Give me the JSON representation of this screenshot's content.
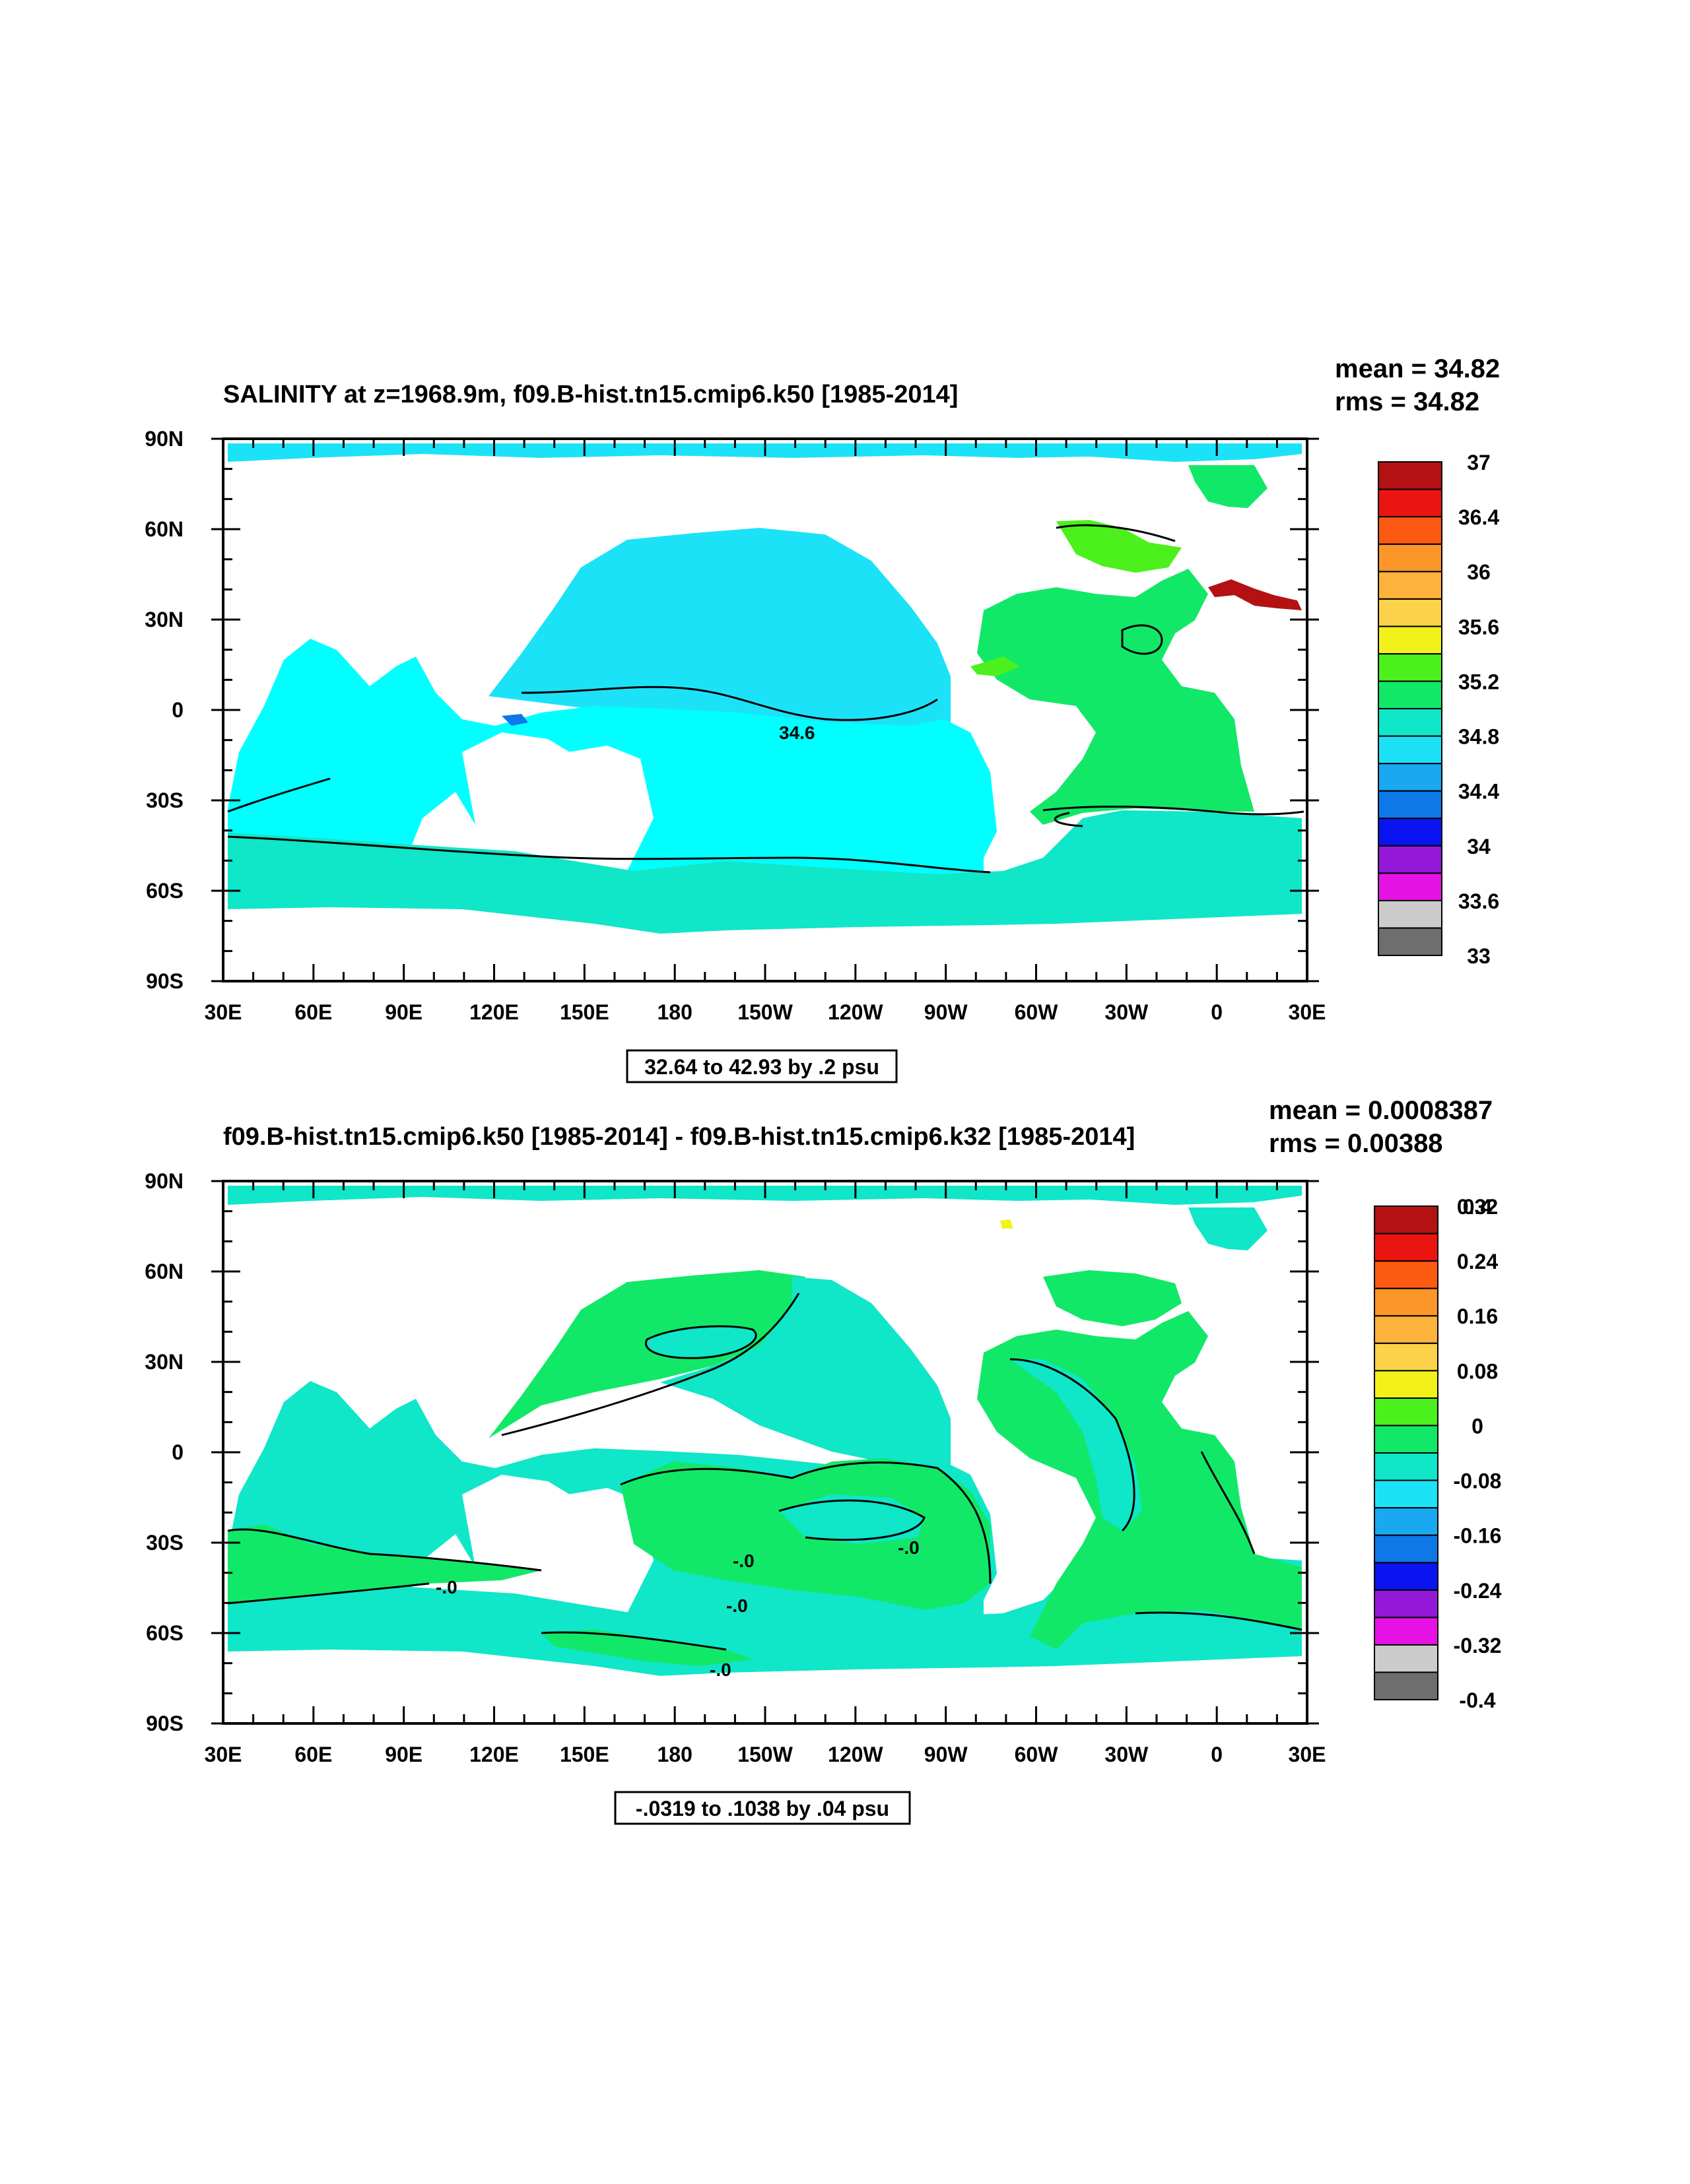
{
  "chart_data": [
    {
      "type": "heatmap",
      "title": "SALINITY at z=1968.9m, f09.B-hist.tn15.cmip6.k50 [1985-2014]",
      "stats": {
        "mean": "mean = 34.82",
        "rms": "rms = 34.82"
      },
      "range_label": "32.64 to 42.93 by .2 psu",
      "x_ticks": [
        "30E",
        "60E",
        "90E",
        "120E",
        "150E",
        "180",
        "150W",
        "120W",
        "90W",
        "60W",
        "30W",
        "0",
        "30E"
      ],
      "y_ticks": [
        "90N",
        "60N",
        "30N",
        "0",
        "30S",
        "60S",
        "90S"
      ],
      "xlim": [
        30,
        390
      ],
      "ylim": [
        -90,
        90
      ],
      "colorbar": {
        "colors": [
          "#6e6e6e",
          "#cccccc",
          "#e612e6",
          "#9418d8",
          "#0a14f0",
          "#0e78e8",
          "#1aa8f0",
          "#1ce2f8",
          "#10e6c8",
          "#12e868",
          "#4cf01c",
          "#f2f21a",
          "#fcd24a",
          "#fcb23c",
          "#fc9628",
          "#fc5a12",
          "#ea1410",
          "#b41212"
        ],
        "labels": [
          "33",
          "33.6",
          "34",
          "34.4",
          "34.8",
          "35.2",
          "35.6",
          "36",
          "36.4",
          "37"
        ]
      },
      "contour_labels": [
        "34.6"
      ],
      "regions": [
        {
          "name": "Arctic Ocean",
          "value_band": "34.8-35.0",
          "color": "#1ce2f8"
        },
        {
          "name": "North Pacific",
          "value_band": "34.4-34.6",
          "color": "#1ce2f8"
        },
        {
          "name": "Indian and South Pacific",
          "value_band": "34.6-34.8",
          "color": "#00ffff"
        },
        {
          "name": "Southern Ocean",
          "value_band": "34.6-34.8",
          "color": "#10e6c8"
        },
        {
          "name": "Atlantic",
          "value_band": "34.8-35.0",
          "color": "#12e868"
        },
        {
          "name": "Mediterranean outflow",
          "value_band": ">36.6",
          "color": "#b41212"
        }
      ]
    },
    {
      "type": "heatmap",
      "title": "f09.B-hist.tn15.cmip6.k50 [1985-2014] - f09.B-hist.tn15.cmip6.k32 [1985-2014]",
      "stats": {
        "mean": "mean = 0.0008387",
        "rms": "rms = 0.00388"
      },
      "range_label": "-.0319 to .1038 by .04 psu",
      "x_ticks": [
        "30E",
        "60E",
        "90E",
        "120E",
        "150E",
        "180",
        "150W",
        "120W",
        "90W",
        "60W",
        "30W",
        "0",
        "30E"
      ],
      "y_ticks": [
        "90N",
        "60N",
        "30N",
        "0",
        "30S",
        "60S",
        "90S"
      ],
      "xlim": [
        30,
        390
      ],
      "ylim": [
        -90,
        90
      ],
      "colorbar": {
        "colors": [
          "#6e6e6e",
          "#cccccc",
          "#e612e6",
          "#9418d8",
          "#0a14f0",
          "#0e78e8",
          "#1aa8f0",
          "#1ce2f8",
          "#10e6c8",
          "#12e868",
          "#4cf01c",
          "#f2f21a",
          "#fcd24a",
          "#fcb23c",
          "#fc9628",
          "#fc5a12",
          "#ea1410",
          "#b41212"
        ],
        "labels": [
          "-0.4",
          "-0.32",
          "-0.24",
          "-0.16",
          "-0.08",
          "0",
          "0.08",
          "0.16",
          "0.24",
          "0.32",
          "0.4"
        ]
      },
      "contour_labels": [
        "-.0",
        "-.0",
        "-.0",
        "-.0",
        "-.0"
      ],
      "regions": [
        {
          "name": "Arctic Ocean",
          "value_band": "-0.04-0",
          "color": "#10e6c8"
        },
        {
          "name": "North Pacific",
          "value_band": "0-0.04",
          "color": "#12e868"
        },
        {
          "name": "Atlantic",
          "value_band": "0-0.04",
          "color": "#12e868"
        },
        {
          "name": "Indian and South Pacific",
          "value_band": "-0.04-0",
          "color": "#10e6c8"
        }
      ]
    }
  ]
}
